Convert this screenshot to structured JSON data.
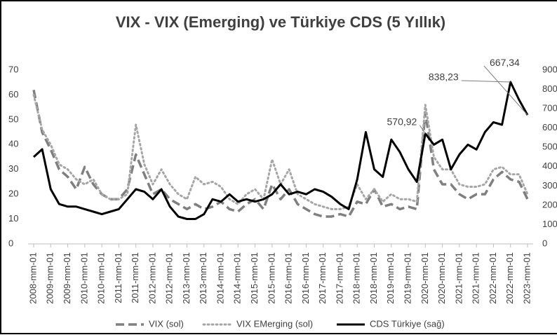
{
  "chart_data": {
    "type": "line",
    "title": "VIX - VIX (Emerging) ve Türkiye CDS (5 Yıllık)",
    "categories": [
      "2008-mm-01",
      null,
      "2009-mm-01",
      null,
      "2009-mm-01",
      null,
      "2010-mm-01",
      null,
      "2010-mm-01",
      null,
      "2011-mm-01",
      null,
      "2011-mm-01",
      null,
      "2012-mm-01",
      null,
      "2012-mm-01",
      null,
      "2013-mm-01",
      null,
      "2013-mm-01",
      null,
      "2014-mm-01",
      null,
      "2014-mm-01",
      null,
      "2015-mm-01",
      null,
      "2015-mm-01",
      null,
      "2016-mm-01",
      null,
      "2016-mm-01",
      null,
      "2017-mm-01",
      null,
      "2017-mm-01",
      null,
      "2018-mm-01",
      null,
      "2018-mm-01",
      null,
      "2019-mm-01",
      null,
      "2019-mm-01",
      null,
      "2020-mm-01",
      null,
      "2020-mm-01",
      null,
      "2021-mm-01",
      null,
      "2021-mm-01",
      null,
      "2022-mm-01",
      null,
      "2022-mm-01",
      null,
      "2023-mm-01"
    ],
    "series": [
      {
        "name": "VIX (sol)",
        "color": "#7f7f7f",
        "dash": "dashed",
        "axis": "y",
        "values": [
          62,
          45,
          38,
          30,
          27,
          22,
          31,
          24,
          20,
          18,
          18,
          22,
          36,
          28,
          20,
          22,
          18,
          16,
          14,
          16,
          14,
          15,
          17,
          14,
          13,
          16,
          18,
          14,
          24,
          18,
          22,
          16,
          14,
          12,
          11,
          11,
          12,
          11,
          17,
          16,
          22,
          15,
          16,
          14,
          15,
          14,
          53,
          30,
          24,
          24,
          20,
          18,
          20,
          20,
          26,
          29,
          26,
          25,
          18
        ]
      },
      {
        "name": "VIX EMerging (sol)",
        "color": "#a6a6a6",
        "dash": "dotted",
        "axis": "y",
        "values": [
          60,
          46,
          40,
          32,
          30,
          26,
          24,
          26,
          20,
          18,
          18,
          20,
          48,
          32,
          24,
          30,
          24,
          20,
          18,
          27,
          24,
          25,
          23,
          18,
          16,
          20,
          22,
          18,
          34,
          24,
          30,
          20,
          18,
          16,
          15,
          14,
          14,
          15,
          24,
          18,
          22,
          17,
          20,
          18,
          18,
          17,
          56,
          35,
          30,
          30,
          24,
          23,
          23,
          24,
          30,
          31,
          28,
          28,
          20
        ]
      },
      {
        "name": "CDS Türkiye (sağ)",
        "color": "#000000",
        "dash": "solid",
        "axis": "y2",
        "values": [
          450,
          490,
          283,
          206,
          193,
          193,
          180,
          167,
          154,
          167,
          180,
          231,
          283,
          270,
          231,
          283,
          193,
          141,
          129,
          129,
          154,
          231,
          219,
          257,
          219,
          231,
          219,
          231,
          257,
          309,
          257,
          270,
          257,
          283,
          270,
          244,
          206,
          180,
          334,
          579,
          386,
          347,
          540,
          476,
          386,
          321,
          570.92,
          514,
          540,
          386,
          463,
          514,
          489,
          579,
          630,
          617,
          838.23,
          746,
          667.34
        ],
        "value_labels": [
          null,
          null,
          null,
          null,
          null,
          null,
          null,
          null,
          null,
          null,
          null,
          null,
          null,
          null,
          null,
          null,
          null,
          null,
          null,
          null,
          null,
          null,
          null,
          null,
          null,
          null,
          null,
          null,
          null,
          null,
          null,
          null,
          null,
          null,
          null,
          null,
          null,
          null,
          null,
          null,
          null,
          null,
          null,
          null,
          null,
          null,
          "570,92",
          null,
          null,
          null,
          null,
          null,
          null,
          null,
          null,
          null,
          "838,23",
          null,
          "667,34"
        ]
      }
    ],
    "ylim": [
      0,
      70
    ],
    "yticks": [
      0,
      10,
      20,
      30,
      40,
      50,
      60,
      70
    ],
    "y2lim": [
      0,
      900
    ],
    "y2ticks": [
      0,
      100,
      200,
      300,
      400,
      500,
      600,
      700,
      800,
      900
    ],
    "grid": false,
    "legend": "bottom"
  }
}
